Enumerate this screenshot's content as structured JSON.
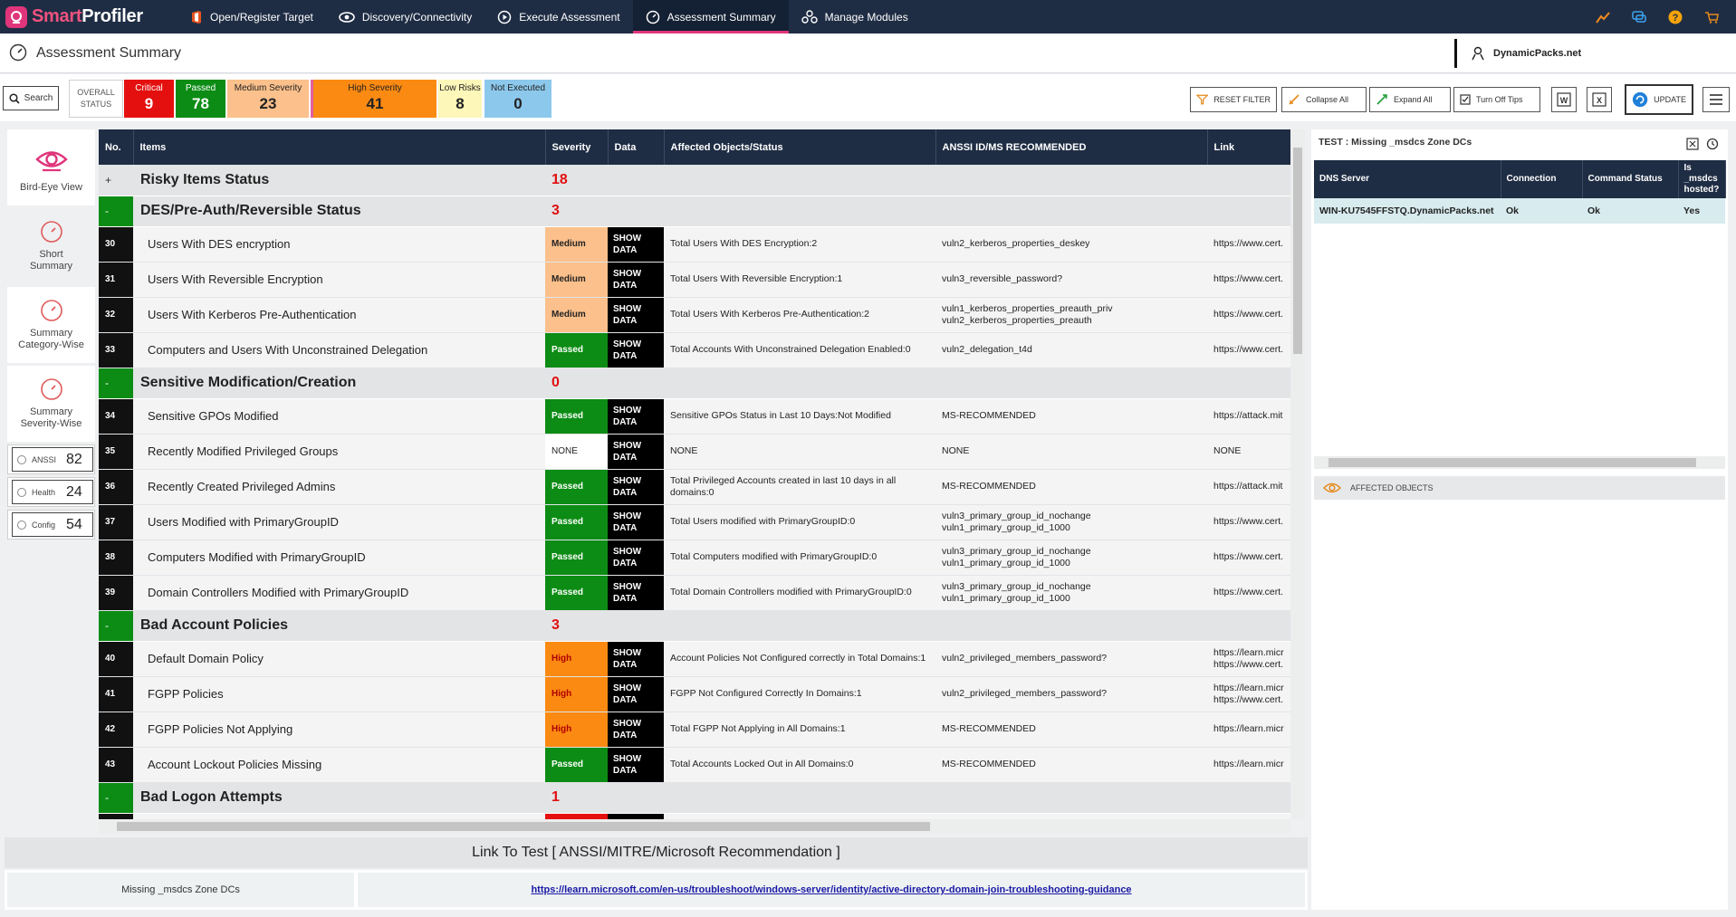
{
  "app": {
    "name_part1": "Smart",
    "name_part2": "Profiler"
  },
  "nav": [
    {
      "label": "Open/Register Target",
      "icon": "office-icon"
    },
    {
      "label": "Discovery/Connectivity",
      "icon": "eye-cloud-icon"
    },
    {
      "label": "Execute Assessment",
      "icon": "play-circle-icon"
    },
    {
      "label": "Assessment Summary",
      "icon": "gauge-icon",
      "active": true
    },
    {
      "label": "Manage Modules",
      "icon": "modules-icon"
    }
  ],
  "page": {
    "title": "Assessment Summary",
    "domain": "DynamicPacks.net"
  },
  "toolbar": {
    "search": "Search",
    "overall_status": "OVERALL STATUS",
    "stats": [
      {
        "label": "Critical",
        "value": "9",
        "bg": "#e4100f",
        "fg": "#ffffff"
      },
      {
        "label": "Passed",
        "value": "78",
        "bg": "#0c8c14",
        "fg": "#ffffff"
      },
      {
        "label": "Medium Severity",
        "value": "23",
        "bg": "#fbc08b",
        "fg": "#222222"
      },
      {
        "label": "High Severity",
        "value": "41",
        "bg": "#fb8a12",
        "fg": "#222222"
      },
      {
        "label": "Low Risks",
        "value": "8",
        "bg": "#fdf7b9",
        "fg": "#222222"
      },
      {
        "label": "Not Executed",
        "value": "0",
        "bg": "#8cc8ec",
        "fg": "#222222"
      }
    ],
    "reset_filter": "RESET FILTER",
    "collapse_all": "Collapse All",
    "expand_all": "Expand All",
    "turn_off_tips": "Turn Off Tips",
    "update": "UPDATE"
  },
  "left_nav": [
    {
      "label": "Bird-Eye View",
      "icon": "eye-icon"
    },
    {
      "label": "Short Summary",
      "icon": "gauge-icon"
    },
    {
      "label": "Summary Category-Wise",
      "icon": "gauge-icon"
    },
    {
      "label": "Summary Severity-Wise",
      "icon": "gauge-icon"
    }
  ],
  "categories": [
    {
      "name": "ANSSI",
      "value": "82"
    },
    {
      "name": "Health",
      "value": "24"
    },
    {
      "name": "Config",
      "value": "54"
    }
  ],
  "table": {
    "headers": [
      "No.",
      "Items",
      "Severity",
      "Data",
      "Affected Objects/Status",
      "ANSSI ID/MS RECOMMENDED",
      "Link"
    ],
    "show_data": "SHOW DATA",
    "rows": [
      {
        "type": "group",
        "toggle": "+",
        "name": "Risky Items Status",
        "count": "18"
      },
      {
        "type": "group",
        "toggle": "-",
        "name": "DES/Pre-Auth/Reversible Status",
        "count": "3"
      },
      {
        "type": "item",
        "no": "30",
        "item": "Users With DES encryption",
        "severity": "Medium",
        "affected": "Total Users With DES Encryption:2",
        "anssi": "vuln2_kerberos_properties_deskey",
        "link": "https://www.cert."
      },
      {
        "type": "item",
        "no": "31",
        "item": "Users With Reversible Encryption",
        "severity": "Medium",
        "affected": "Total Users With Reversible Encryption:1",
        "anssi": "vuln3_reversible_password?",
        "link": "https://www.cert."
      },
      {
        "type": "item",
        "no": "32",
        "item": "Users With Kerberos Pre-Authentication",
        "severity": "Medium",
        "affected": "Total Users With Kerberos Pre-Authentication:2",
        "anssi": "vuln1_kerberos_properties_preauth_priv vuln2_kerberos_properties_preauth",
        "link": "https://www.cert."
      },
      {
        "type": "item",
        "no": "33",
        "item": "Computers and Users With Unconstrained Delegation",
        "severity": "Passed",
        "affected": "Total Accounts With Unconstrained Delegation Enabled:0",
        "anssi": "vuln2_delegation_t4d",
        "link": "https://www.cert."
      },
      {
        "type": "group",
        "toggle": "-",
        "name": "Sensitive Modification/Creation",
        "count": "0"
      },
      {
        "type": "item",
        "no": "34",
        "item": "Sensitive GPOs Modified",
        "severity": "Passed",
        "affected": "Sensitive GPOs Status in Last 10 Days:Not Modified",
        "anssi": "MS-RECOMMENDED",
        "link": "https://attack.mit"
      },
      {
        "type": "item",
        "no": "35",
        "item": "Recently Modified Privileged Groups",
        "severity": "NONE",
        "affected": "NONE",
        "anssi": "NONE",
        "link": "NONE"
      },
      {
        "type": "item",
        "no": "36",
        "item": "Recently Created Privileged Admins",
        "severity": "Passed",
        "affected": "Total Privileged Accounts created in last 10 days in all domains:0",
        "anssi": "MS-RECOMMENDED",
        "link": "https://attack.mit"
      },
      {
        "type": "item",
        "no": "37",
        "item": "Users Modified with PrimaryGroupID",
        "severity": "Passed",
        "affected": "Total Users modified with PrimaryGroupID:0",
        "anssi": "vuln3_primary_group_id_nochange vuln1_primary_group_id_1000",
        "link": "https://www.cert."
      },
      {
        "type": "item",
        "no": "38",
        "item": "Computers Modified with PrimaryGroupID",
        "severity": "Passed",
        "affected": "Total Computers modified with PrimaryGroupID:0",
        "anssi": "vuln3_primary_group_id_nochange vuln1_primary_group_id_1000",
        "link": "https://www.cert."
      },
      {
        "type": "item",
        "no": "39",
        "item": "Domain Controllers Modified with PrimaryGroupID",
        "severity": "Passed",
        "affected": "Total Domain Controllers modified with PrimaryGroupID:0",
        "anssi": "vuln3_primary_group_id_nochange vuln1_primary_group_id_1000",
        "link": "https://www.cert."
      },
      {
        "type": "group",
        "toggle": "-",
        "name": "Bad Account Policies",
        "count": "3"
      },
      {
        "type": "item",
        "no": "40",
        "item": "Default Domain Policy",
        "severity": "High",
        "affected": "Account Policies Not Configured correctly in Total Domains:1",
        "anssi": "vuln2_privileged_members_password?",
        "link": "https://learn.micr https://www.cert."
      },
      {
        "type": "item",
        "no": "41",
        "item": "FGPP Policies",
        "severity": "High",
        "affected": "FGPP Not Configured Correctly In Domains:1",
        "anssi": "vuln2_privileged_members_password?",
        "link": "https://learn.micr https://www.cert."
      },
      {
        "type": "item",
        "no": "42",
        "item": "FGPP Policies Not Applying",
        "severity": "High",
        "affected": "Total FGPP Not Applying in All Domains:1",
        "anssi": "MS-RECOMMENDED",
        "link": "https://learn.micr"
      },
      {
        "type": "item",
        "no": "43",
        "item": "Account Lockout Policies Missing",
        "severity": "Passed",
        "affected": "Total Accounts Locked Out in All Domains:0",
        "anssi": "MS-RECOMMENDED",
        "link": "https://learn.micr"
      },
      {
        "type": "group",
        "toggle": "-",
        "name": "Bad Logon Attempts",
        "count": "1"
      }
    ]
  },
  "severity_colors": {
    "Medium": {
      "bg": "#fbc08b",
      "fg": "#222222"
    },
    "Passed": {
      "bg": "#0c8c14",
      "fg": "#ffffff"
    },
    "High": {
      "bg": "#fb8a12",
      "fg": "#b00000"
    },
    "NONE": {
      "bg": "#ffffff",
      "fg": "#222222"
    }
  },
  "link_panel": {
    "title": "Link To Test [ ANSSI/MITRE/Microsoft Recommendation ]",
    "test_name": "Missing _msdcs Zone DCs",
    "url": "https://learn.microsoft.com/en-us/troubleshoot/windows-server/identity/active-directory-domain-join-troubleshooting-guidance"
  },
  "right_panel": {
    "title": "TEST : Missing _msdcs Zone DCs",
    "headers": [
      "DNS Server",
      "Connection",
      "Command Status",
      "Is _msdcs hosted?"
    ],
    "rows": [
      [
        "WIN-KU7545FFSTQ.DynamicPacks.net",
        "Ok",
        "Ok",
        "Yes"
      ]
    ],
    "affected_objects": "AFFECTED OBJECTS"
  }
}
